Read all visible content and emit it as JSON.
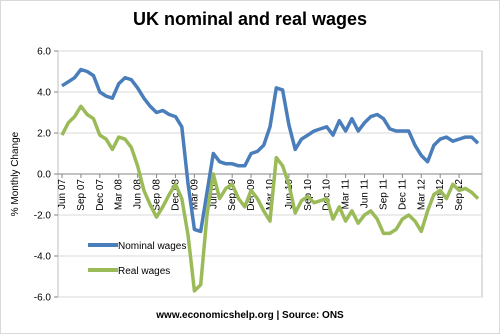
{
  "chart_data": {
    "type": "line",
    "title": "UK nominal and real wages",
    "y_label": "% Monthly Change",
    "footer": "www.economicshelp.org | Source: ONS",
    "categories": [
      "Jun 07",
      null,
      null,
      "Sep 07",
      null,
      null,
      "Dec 07",
      null,
      null,
      "Mar 08",
      null,
      null,
      "Jun 08",
      null,
      null,
      "Sep 08",
      null,
      null,
      "Dec 08",
      null,
      null,
      "Mar 09",
      null,
      null,
      "Jun 09",
      null,
      null,
      "Sep 09",
      null,
      null,
      "Dec 09",
      null,
      null,
      "Mar 10",
      null,
      null,
      "Jun 10",
      null,
      null,
      "Sep 10",
      null,
      null,
      "Dec 10",
      null,
      null,
      "Mar 11",
      null,
      null,
      "Jun 11",
      null,
      null,
      "Sep 11",
      null,
      null,
      "Dec 11",
      null,
      null,
      "Mar 12",
      null,
      null,
      "Jun 12",
      null,
      null,
      "Sep 12",
      null,
      null,
      null
    ],
    "series": [
      {
        "name": "Nominal wages",
        "color": "#4a7ebb",
        "values": [
          4.3,
          4.5,
          4.7,
          5.1,
          5.0,
          4.8,
          4.0,
          3.8,
          3.7,
          4.4,
          4.7,
          4.6,
          4.2,
          3.7,
          3.3,
          3.0,
          3.1,
          2.9,
          2.8,
          2.3,
          -0.5,
          -2.7,
          -2.8,
          -0.9,
          1.0,
          0.6,
          0.5,
          0.5,
          0.4,
          0.4,
          1.0,
          1.1,
          1.4,
          2.3,
          4.2,
          4.1,
          2.4,
          1.2,
          1.7,
          1.9,
          2.1,
          2.2,
          2.3,
          1.9,
          2.6,
          2.1,
          2.7,
          2.1,
          2.5,
          2.8,
          2.9,
          2.7,
          2.2,
          2.1,
          2.1,
          2.1,
          1.4,
          0.9,
          0.6,
          1.4,
          1.7,
          1.8,
          1.6,
          1.7,
          1.8,
          1.8,
          1.5
        ]
      },
      {
        "name": "Real wages",
        "color": "#9bbb59",
        "values": [
          1.9,
          2.5,
          2.8,
          3.3,
          2.9,
          2.7,
          1.9,
          1.7,
          1.2,
          1.8,
          1.7,
          1.3,
          0.4,
          -0.8,
          -1.5,
          -2.1,
          -1.6,
          -1.0,
          -0.5,
          -1.2,
          -3.0,
          -5.7,
          -5.4,
          -2.0,
          0.0,
          -1.2,
          -0.7,
          -0.5,
          -1.2,
          -1.6,
          -0.8,
          -1.2,
          -1.8,
          -2.3,
          0.8,
          0.4,
          -0.5,
          -1.9,
          -1.3,
          -1.1,
          -1.4,
          -1.3,
          -1.2,
          -2.2,
          -1.6,
          -2.3,
          -1.8,
          -2.4,
          -2.0,
          -1.8,
          -2.2,
          -2.9,
          -2.9,
          -2.7,
          -2.2,
          -2.0,
          -2.3,
          -2.8,
          -1.8,
          -1.0,
          -0.8,
          -1.2,
          -0.5,
          -0.8,
          -0.7,
          -0.9,
          -1.2
        ]
      }
    ],
    "ylim": [
      -6,
      6
    ],
    "yticks": [
      {
        "value": -6,
        "label": "-6.0"
      },
      {
        "value": -4,
        "label": "-4.0"
      },
      {
        "value": -2,
        "label": "-2.0"
      },
      {
        "value": 0,
        "label": "0.0"
      },
      {
        "value": 2,
        "label": "2.0"
      },
      {
        "value": 4,
        "label": "4.0"
      },
      {
        "value": 6,
        "label": "6.0"
      }
    ],
    "grid": true,
    "legend": "lower left"
  }
}
